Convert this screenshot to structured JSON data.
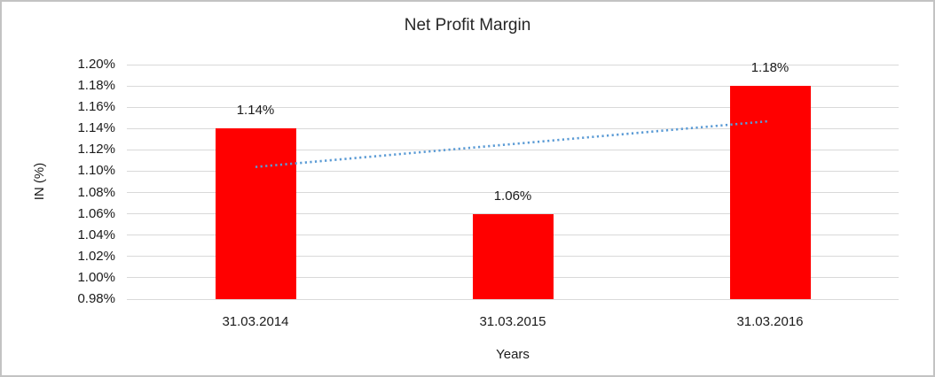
{
  "chart_data": {
    "type": "bar",
    "title": "Net Profit Margin",
    "xlabel": "Years",
    "ylabel": "IN (%)",
    "categories": [
      "31.03.2014",
      "31.03.2015",
      "31.03.2016"
    ],
    "values": [
      1.14,
      1.06,
      1.18
    ],
    "data_labels": [
      "1.14%",
      "1.06%",
      "1.18%"
    ],
    "ylim": [
      0.98,
      1.2
    ],
    "ytick_step": 0.02,
    "ytick_labels": [
      "1.20%",
      "1.18%",
      "1.16%",
      "1.14%",
      "1.12%",
      "1.10%",
      "1.08%",
      "1.06%",
      "1.04%",
      "1.02%",
      "1.00%",
      "0.98%"
    ],
    "grid": true,
    "legend_position": "none",
    "trendline": {
      "type": "linear",
      "style": "dotted",
      "start_value": 1.104,
      "end_value": 1.147
    },
    "colors": {
      "bar": "#ff0000",
      "gridline": "#d9d9d9",
      "trendline": "#5b9bd5",
      "text": "#1a1a1a",
      "background": "#ffffff",
      "frame_border": "#c3c3c3"
    }
  }
}
